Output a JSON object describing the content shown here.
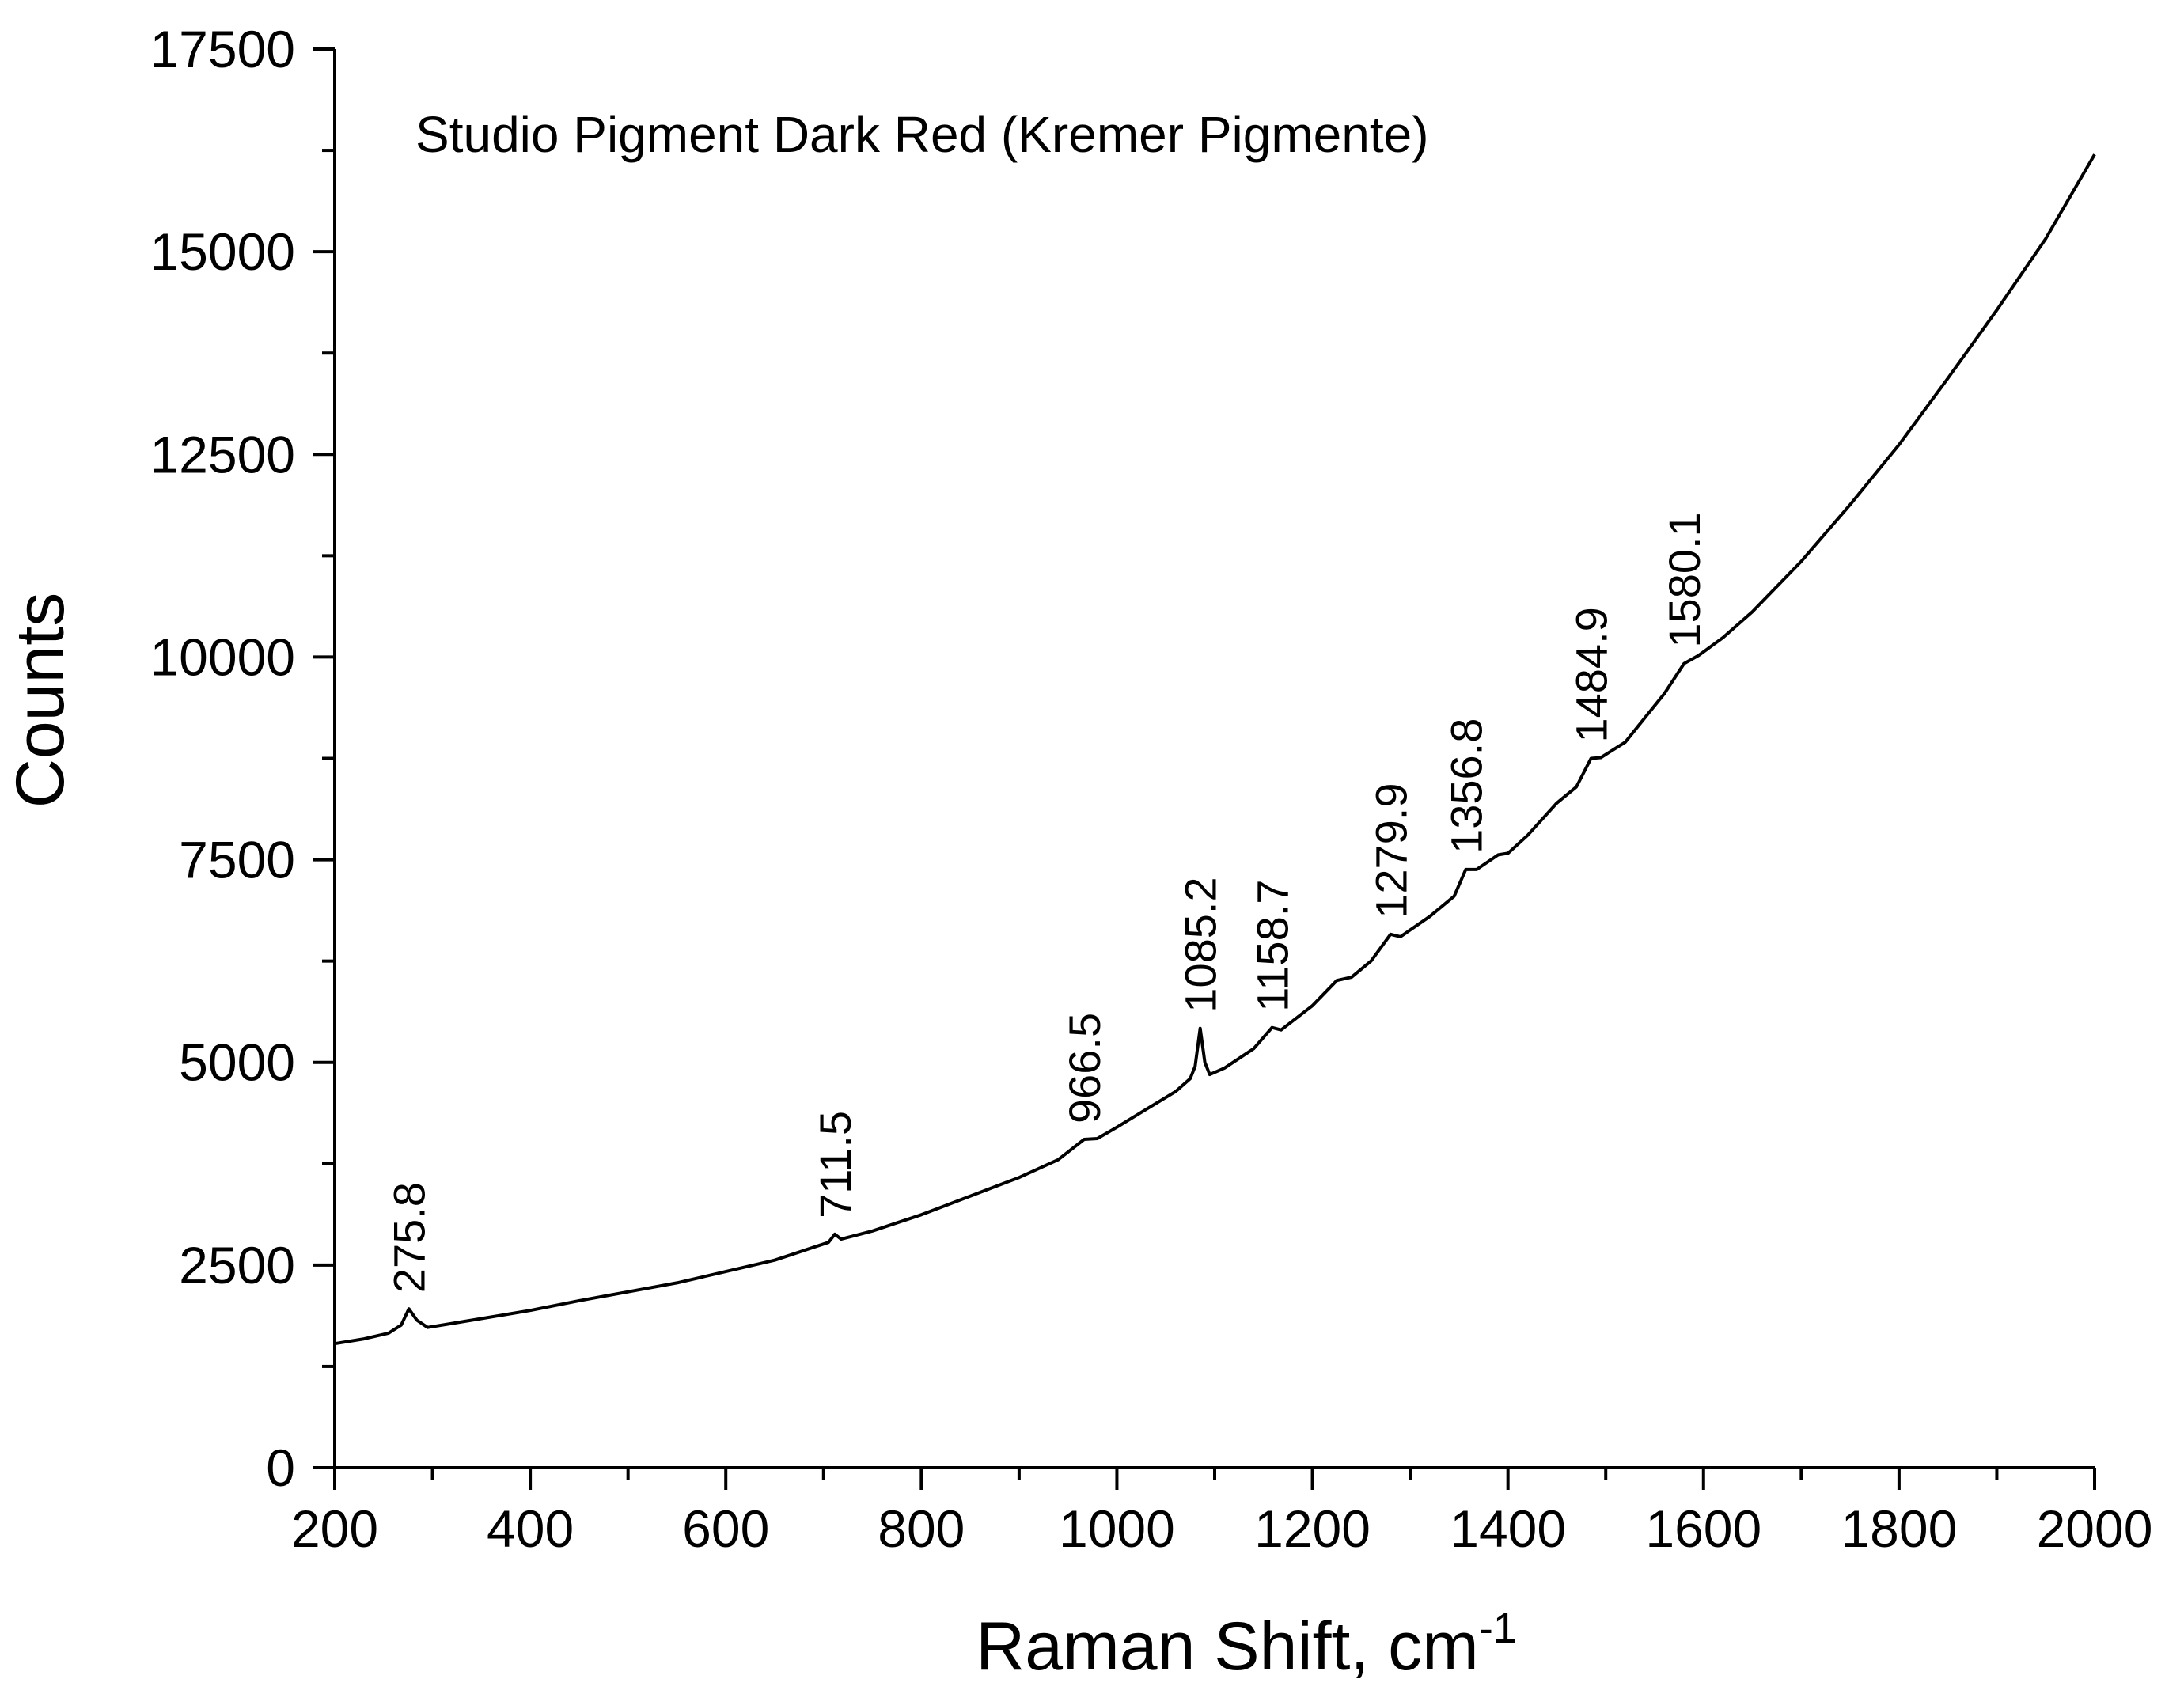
{
  "chart_data": {
    "type": "line",
    "title": "Studio Pigment Dark Red (Kremer Pigmente)",
    "xlabel": "Raman Shift, cm",
    "xlabel_sup": "-1",
    "ylabel": "Counts",
    "xlim": [
      200,
      2000
    ],
    "ylim": [
      0,
      17500
    ],
    "x_ticks": [
      "200",
      "400",
      "600",
      "800",
      "1000",
      "1200",
      "1400",
      "1600",
      "1800",
      "2000"
    ],
    "y_ticks": [
      "0",
      "2500",
      "5000",
      "7500",
      "10000",
      "12500",
      "15000",
      "17500"
    ],
    "grid": false,
    "series": [
      {
        "color": "#000000",
        "points": [
          [
            200,
            1530
          ],
          [
            230,
            1590
          ],
          [
            255,
            1660
          ],
          [
            268,
            1760
          ],
          [
            275.8,
            1960
          ],
          [
            284,
            1820
          ],
          [
            295,
            1730
          ],
          [
            320,
            1780
          ],
          [
            350,
            1840
          ],
          [
            400,
            1940
          ],
          [
            450,
            2060
          ],
          [
            500,
            2170
          ],
          [
            550,
            2280
          ],
          [
            600,
            2420
          ],
          [
            650,
            2560
          ],
          [
            690,
            2720
          ],
          [
            705,
            2780
          ],
          [
            711.5,
            2880
          ],
          [
            718,
            2820
          ],
          [
            750,
            2920
          ],
          [
            800,
            3120
          ],
          [
            850,
            3350
          ],
          [
            900,
            3580
          ],
          [
            940,
            3800
          ],
          [
            966.5,
            4050
          ],
          [
            980,
            4060
          ],
          [
            1000,
            4200
          ],
          [
            1030,
            4420
          ],
          [
            1060,
            4640
          ],
          [
            1075,
            4800
          ],
          [
            1080,
            4950
          ],
          [
            1085.2,
            5420
          ],
          [
            1090,
            5000
          ],
          [
            1095,
            4850
          ],
          [
            1110,
            4930
          ],
          [
            1140,
            5170
          ],
          [
            1158.7,
            5430
          ],
          [
            1168,
            5400
          ],
          [
            1200,
            5700
          ],
          [
            1225,
            6010
          ],
          [
            1240,
            6050
          ],
          [
            1260,
            6250
          ],
          [
            1279.9,
            6580
          ],
          [
            1290,
            6550
          ],
          [
            1320,
            6800
          ],
          [
            1345,
            7050
          ],
          [
            1356.8,
            7380
          ],
          [
            1368,
            7380
          ],
          [
            1390,
            7560
          ],
          [
            1400,
            7580
          ],
          [
            1420,
            7800
          ],
          [
            1450,
            8200
          ],
          [
            1470,
            8400
          ],
          [
            1484.9,
            8750
          ],
          [
            1495,
            8760
          ],
          [
            1520,
            8950
          ],
          [
            1540,
            9250
          ],
          [
            1560,
            9550
          ],
          [
            1580.1,
            9920
          ],
          [
            1595,
            10020
          ],
          [
            1620,
            10240
          ],
          [
            1650,
            10560
          ],
          [
            1700,
            11180
          ],
          [
            1750,
            11880
          ],
          [
            1800,
            12620
          ],
          [
            1850,
            13440
          ],
          [
            1900,
            14280
          ],
          [
            1950,
            15160
          ],
          [
            2000,
            16200
          ]
        ]
      }
    ],
    "annotations": [
      {
        "x": 275.8,
        "y": 1960,
        "text": "275.8"
      },
      {
        "x": 711.5,
        "y": 2880,
        "text": "711.5"
      },
      {
        "x": 966.5,
        "y": 4050,
        "text": "966.5"
      },
      {
        "x": 1085.2,
        "y": 5420,
        "text": "1085.2"
      },
      {
        "x": 1158.7,
        "y": 5430,
        "text": "1158.7"
      },
      {
        "x": 1279.9,
        "y": 6580,
        "text": "1279.9"
      },
      {
        "x": 1356.8,
        "y": 7380,
        "text": "1356.8"
      },
      {
        "x": 1484.9,
        "y": 8750,
        "text": "1484.9"
      },
      {
        "x": 1580.1,
        "y": 9920,
        "text": "1580.1"
      }
    ]
  }
}
